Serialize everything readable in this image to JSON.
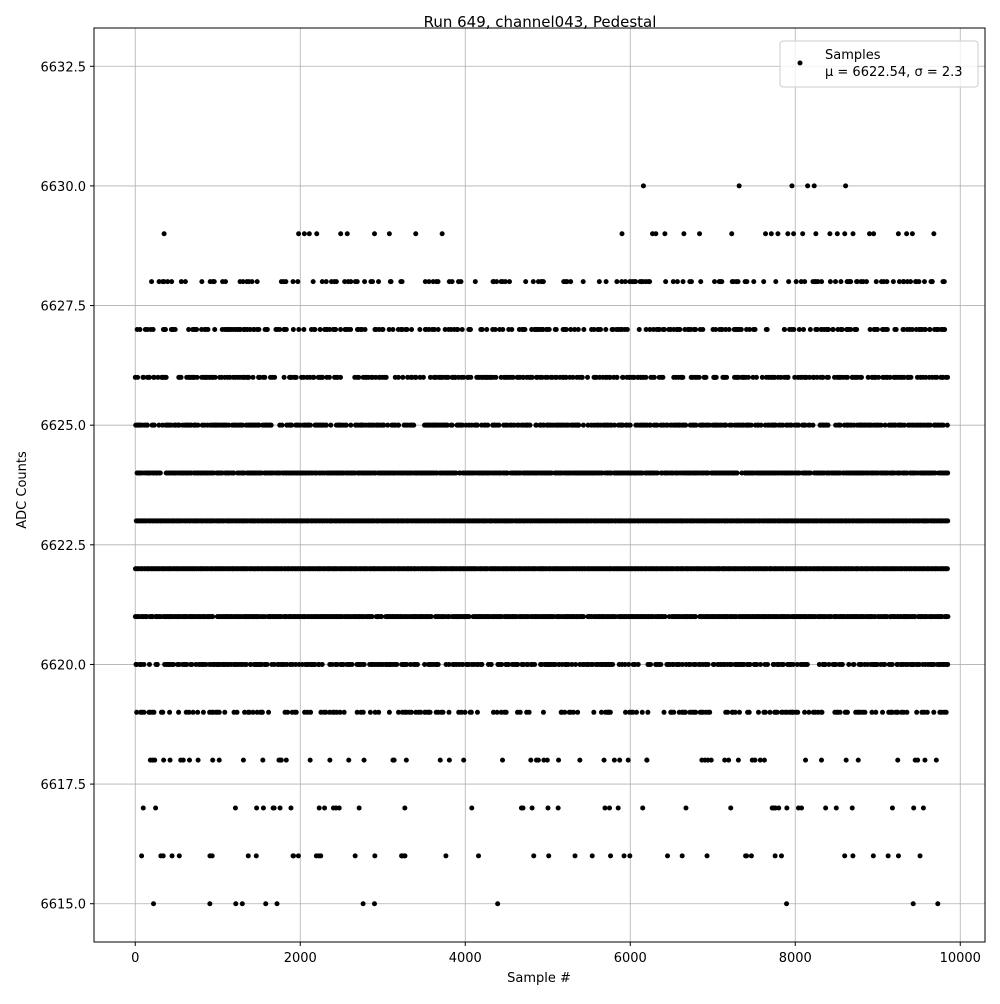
{
  "chart_data": {
    "type": "scatter",
    "title": "Run 649, channel043, Pedestal",
    "xlabel": "Sample #",
    "ylabel": "ADC Counts",
    "xlim": [
      -500,
      10300
    ],
    "ylim": [
      6614.2,
      6633.3
    ],
    "xticks": [
      0,
      2000,
      4000,
      6000,
      8000,
      10000
    ],
    "yticks": [
      6615.0,
      6617.5,
      6620.0,
      6622.5,
      6625.0,
      6627.5,
      6630.0,
      6632.5
    ],
    "xtick_labels": [
      "0",
      "2000",
      "4000",
      "6000",
      "8000",
      "10000"
    ],
    "ytick_labels": [
      "6615.0",
      "6617.5",
      "6620.0",
      "6622.5",
      "6625.0",
      "6627.5",
      "6630.0",
      "6632.5"
    ],
    "grid": true,
    "legend": {
      "placement": "top-right",
      "entries": [
        "Samples",
        "μ = 6622.54, σ = 2.3"
      ]
    },
    "marker_color": "#000000",
    "n_samples": 9850,
    "series": [
      {
        "name": "Samples",
        "values_by_level": [
          {
            "y": 6630,
            "x": [
              6160,
              7320,
              7960,
              8150,
              8230,
              8610
            ]
          },
          {
            "y": 6629,
            "x": [
              350,
              1980,
              2050,
              2110,
              2200,
              2490,
              2570,
              2900,
              3080,
              3400,
              3720,
              5900,
              6270,
              6310,
              6420,
              6650,
              6840,
              7230,
              7640,
              7710,
              7790,
              7910,
              7980,
              8090,
              8250,
              8420,
              8510,
              8600,
              8700,
              8900,
              8950,
              9250,
              9350,
              9420,
              9680
            ]
          }
        ]
      }
    ]
  }
}
